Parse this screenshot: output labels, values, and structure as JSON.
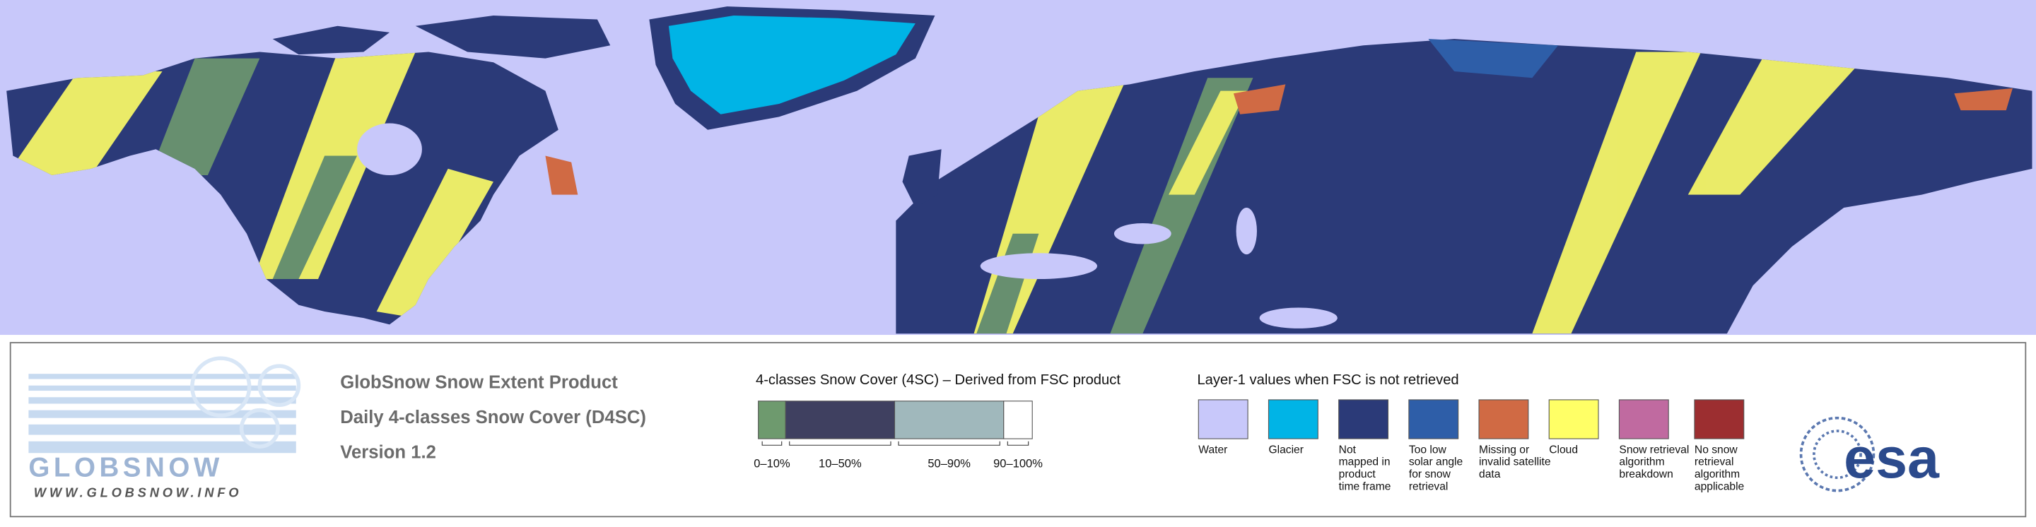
{
  "header": {
    "logo_text": "GLOBSNOW",
    "url": "WWW.GLOBSNOW.INFO",
    "lines": [
      "GlobSnow Snow Extent Product",
      "Daily 4-classes Snow Cover (D4SC)",
      "Version 1.2"
    ]
  },
  "snow_cover_legend": {
    "title": "4-classes Snow Cover (4SC) – Derived from FSC product",
    "classes": [
      {
        "label": "0–10%",
        "color": "#6e9a6e"
      },
      {
        "label": "10–50%",
        "color": "#3f4060"
      },
      {
        "label": "50–90%",
        "color": "#a0b8bc"
      },
      {
        "label": "90–100%",
        "color": "#ffffff"
      }
    ]
  },
  "layer1_legend": {
    "title": "Layer-1 values when FSC is not retrieved",
    "items": [
      {
        "lines": [
          "Water"
        ],
        "color": "#c8c8fa"
      },
      {
        "lines": [
          "Glacier"
        ],
        "color": "#00b4e6"
      },
      {
        "lines": [
          "Not",
          "mapped in",
          "product",
          "time frame"
        ],
        "color": "#2b3a78"
      },
      {
        "lines": [
          "Too low",
          "solar angle",
          "for snow",
          "retrieval"
        ],
        "color": "#2e5ea8"
      },
      {
        "lines": [
          "Missing or",
          "invalid satellite",
          "data"
        ],
        "color": "#d06a44"
      },
      {
        "lines": [
          "Cloud"
        ],
        "color": "#ffff66"
      },
      {
        "lines": [
          "Snow retrieval",
          "algorithm",
          "breakdown"
        ],
        "color": "#c06aa0"
      },
      {
        "lines": [
          "No snow",
          "retrieval",
          "algorithm",
          "applicable"
        ],
        "color": "#9c2e30"
      }
    ]
  },
  "esa_logo": "esa"
}
